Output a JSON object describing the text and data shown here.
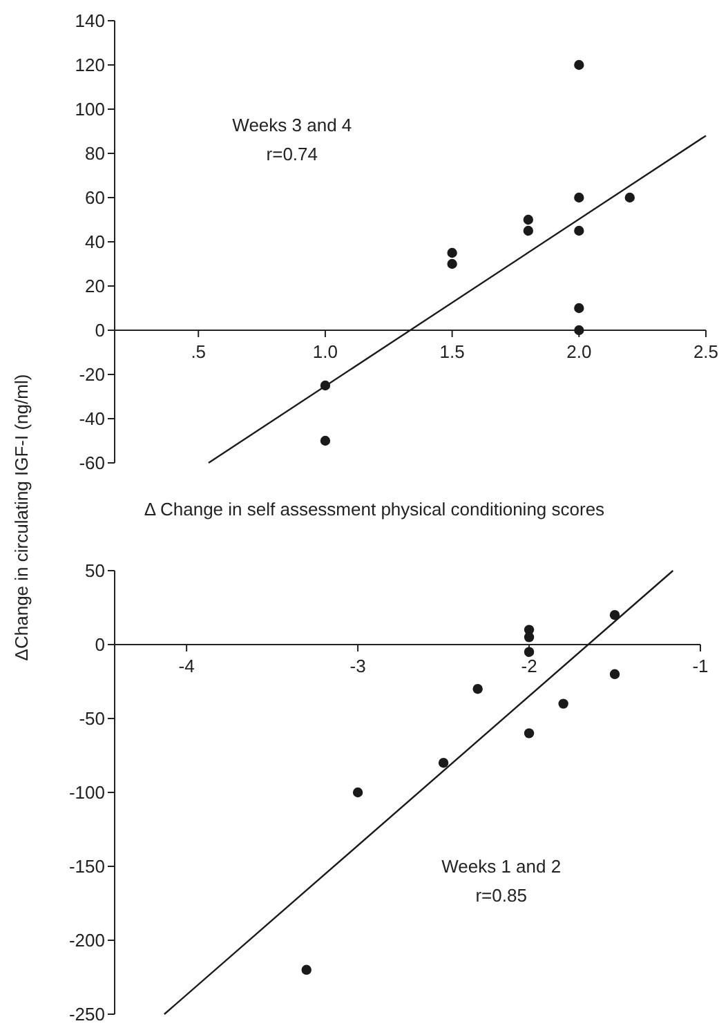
{
  "chart_data": [
    {
      "type": "scatter",
      "xlabel": "Δ Change in self assessment physical conditioning scores",
      "ylabel": "ΔChange in circulating IGF-I (ng/ml)",
      "annotations": [
        "Weeks 3 and 4\nr=0.74"
      ],
      "xlim": [
        0.17,
        2.5
      ],
      "ylim": [
        -60,
        140
      ],
      "xticks": [
        {
          "value": 0.5,
          "label": ".5"
        },
        {
          "value": 1,
          "label": "1.0"
        },
        {
          "value": 1.5,
          "label": "1.5"
        },
        {
          "value": 2,
          "label": "2.0"
        },
        2.5
      ],
      "yticks": [
        -60,
        -40,
        -20,
        0,
        20,
        40,
        60,
        80,
        100,
        120,
        140
      ],
      "grid": false,
      "series": [
        {
          "color": "#1a1a1a",
          "marker": "circle",
          "x": [
            1.0,
            1.0,
            1.5,
            1.5,
            1.8,
            1.8,
            2.0,
            2.0,
            2.0,
            2.0,
            2.0,
            2.2
          ],
          "values": [
            -25,
            -50,
            35,
            30,
            50,
            45,
            120,
            60,
            45,
            10,
            0,
            60
          ]
        },
        {
          "type": "line",
          "color": "#1a1a1a",
          "x": [
            0.54,
            2.5
          ],
          "values": [
            -60,
            88
          ]
        }
      ]
    },
    {
      "type": "scatter",
      "annotations": [
        "Weeks 1 and 2\nr=0.85"
      ],
      "xlim": [
        -4.42,
        -1
      ],
      "ylim": [
        -250,
        50
      ],
      "xticks": [
        -4,
        -3,
        -2,
        -1
      ],
      "yticks": [
        -250,
        -200,
        -150,
        -100,
        -50,
        0,
        50
      ],
      "grid": false,
      "series": [
        {
          "color": "#1a1a1a",
          "marker": "circle",
          "x": [
            -2,
            -2,
            -2,
            -1.5,
            -1.5,
            -2.3,
            -1.8,
            -2,
            -2.5,
            -3,
            -3.3
          ],
          "values": [
            10,
            5,
            -5,
            20,
            -20,
            -30,
            -40,
            -60,
            -80,
            -100,
            -220
          ]
        },
        {
          "type": "line",
          "color": "#1a1a1a",
          "x": [
            -4.13,
            -1.16
          ],
          "values": [
            -250,
            50
          ]
        }
      ]
    }
  ]
}
